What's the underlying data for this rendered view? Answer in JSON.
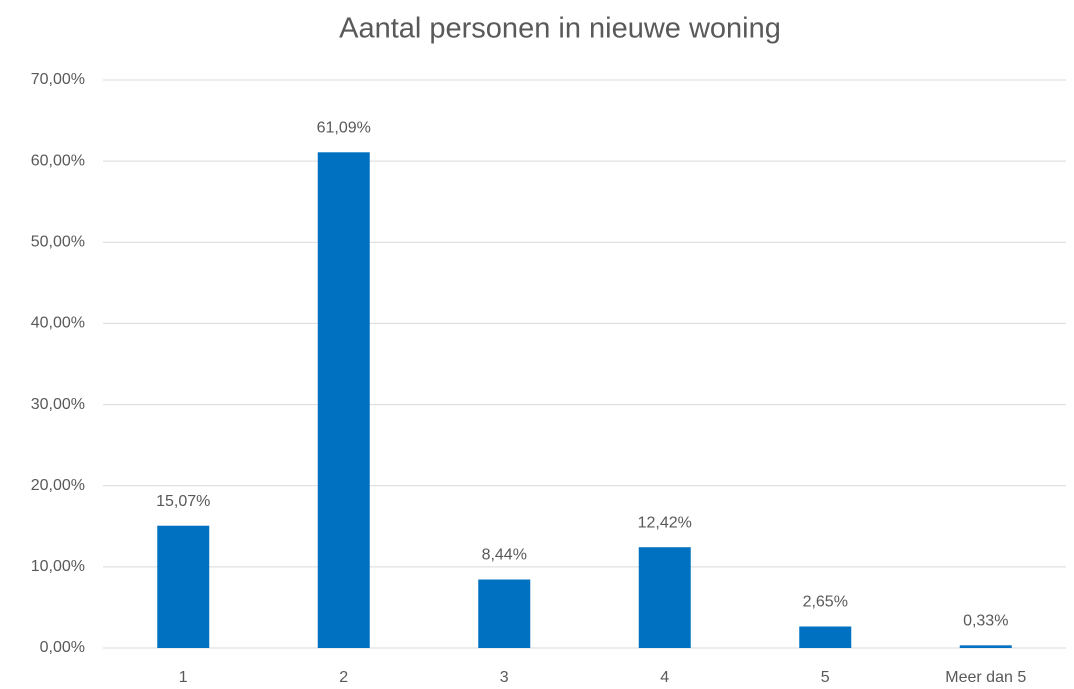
{
  "chart_data": {
    "type": "bar",
    "title": "Aantal personen in nieuwe woning",
    "categories": [
      "1",
      "2",
      "3",
      "4",
      "5",
      "Meer dan 5"
    ],
    "values": [
      15.07,
      61.09,
      8.44,
      12.42,
      2.65,
      0.33
    ],
    "value_labels": [
      "15,07%",
      "61,09%",
      "8,44%",
      "12,42%",
      "2,65%",
      "0,33%"
    ],
    "color": "#0070c0",
    "ylim": [
      0,
      70
    ],
    "yticks": [
      {
        "value": 0,
        "label": "0,00%"
      },
      {
        "value": 10,
        "label": "10,00%"
      },
      {
        "value": 20,
        "label": "20,00%"
      },
      {
        "value": 30,
        "label": "30,00%"
      },
      {
        "value": 40,
        "label": "40,00%"
      },
      {
        "value": 50,
        "label": "50,00%"
      },
      {
        "value": 60,
        "label": "60,00%"
      },
      {
        "value": 70,
        "label": "70,00%"
      }
    ],
    "grid": true
  }
}
